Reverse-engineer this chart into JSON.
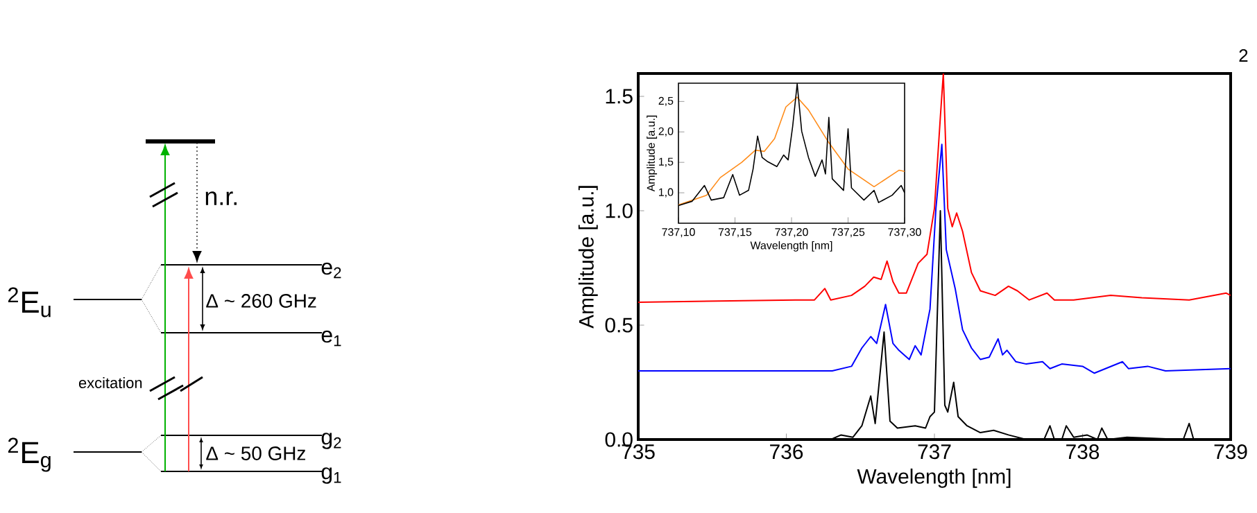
{
  "chart_data": [
    {
      "type": "line",
      "xlabel": "Wavelength [nm]",
      "ylabel": "Amplitude [a.u.]",
      "xlim": [
        735,
        739
      ],
      "ylim": [
        0,
        1.6
      ],
      "xticks": [
        735,
        736,
        737,
        738,
        739
      ],
      "yticks": [
        {
          "value": 0,
          "label": "0.0"
        },
        {
          "value": 0.5,
          "label": "0.5"
        },
        {
          "value": 1,
          "label": "1.0"
        },
        {
          "value": 1.5,
          "label": "1.5"
        }
      ],
      "series": [
        {
          "color": "#ff0000",
          "x": [
            735,
            736.06,
            736.19,
            736.26,
            736.3,
            736.44,
            736.53,
            736.59,
            736.64,
            736.68,
            736.72,
            736.76,
            736.81,
            736.89,
            736.95,
            737.0,
            737.04,
            737.06,
            737.09,
            737.12,
            737.15,
            737.19,
            737.22,
            737.25,
            737.31,
            737.41,
            737.5,
            737.56,
            737.64,
            737.76,
            737.81,
            737.94,
            738.19,
            738.4,
            738.72,
            738.97,
            739
          ],
          "values": [
            0.6,
            0.61,
            0.61,
            0.66,
            0.61,
            0.63,
            0.67,
            0.71,
            0.7,
            0.78,
            0.69,
            0.64,
            0.64,
            0.77,
            0.81,
            1.01,
            1.41,
            1.6,
            1.01,
            0.93,
            0.99,
            0.91,
            0.82,
            0.73,
            0.65,
            0.63,
            0.67,
            0.65,
            0.61,
            0.64,
            0.61,
            0.61,
            0.63,
            0.62,
            0.61,
            0.64,
            0.63
          ]
        },
        {
          "color": "#0000ff",
          "x": [
            735,
            736.31,
            736.44,
            736.51,
            736.57,
            736.61,
            736.67,
            736.72,
            736.76,
            736.83,
            736.87,
            736.91,
            736.97,
            737.01,
            737.05,
            737.08,
            737.14,
            737.19,
            737.25,
            737.31,
            737.37,
            737.43,
            737.46,
            737.49,
            737.55,
            737.62,
            737.73,
            737.78,
            737.86,
            738.0,
            738.08,
            738.27,
            738.31,
            738.44,
            738.56,
            739
          ],
          "values": [
            0.3,
            0.3,
            0.32,
            0.4,
            0.45,
            0.42,
            0.59,
            0.42,
            0.39,
            0.35,
            0.41,
            0.37,
            0.57,
            1.01,
            1.29,
            0.83,
            0.66,
            0.48,
            0.4,
            0.35,
            0.36,
            0.44,
            0.37,
            0.39,
            0.34,
            0.33,
            0.34,
            0.31,
            0.33,
            0.32,
            0.29,
            0.34,
            0.31,
            0.32,
            0.3,
            0.31
          ]
        },
        {
          "color": "#000000",
          "x": [
            735,
            736.3,
            736.37,
            736.45,
            736.51,
            736.57,
            736.6,
            736.66,
            736.7,
            736.75,
            736.87,
            736.94,
            736.97,
            737.0,
            737.04,
            737.07,
            737.09,
            737.13,
            737.16,
            737.22,
            737.31,
            737.4,
            737.5,
            737.62,
            737.74,
            737.78,
            737.81,
            737.86,
            737.89,
            737.94,
            738.03,
            738.1,
            738.13,
            738.17,
            738.3,
            738.68,
            738.72,
            738.75,
            739
          ],
          "values": [
            0,
            0,
            0.02,
            0.01,
            0.06,
            0.19,
            0.07,
            0.47,
            0.08,
            0.05,
            0.06,
            0.05,
            0.1,
            0.12,
            1.0,
            0.15,
            0.12,
            0.25,
            0.1,
            0.06,
            0.03,
            0.04,
            0.02,
            0.0,
            0.0,
            0.06,
            0.0,
            0.0,
            0.06,
            0.01,
            0.02,
            0.0,
            0.05,
            0.0,
            0.01,
            0.0,
            0.07,
            0.0,
            0.0
          ]
        }
      ]
    },
    {
      "type": "line",
      "xlabel": "Wavelength [nm]",
      "ylabel": "Amplitude [a.u.]",
      "xlim": [
        737.1,
        737.3
      ],
      "ylim": [
        0.5,
        2.8
      ],
      "xticks": [
        {
          "value": 737.1,
          "label": "737,10"
        },
        {
          "value": 737.15,
          "label": "737,15"
        },
        {
          "value": 737.2,
          "label": "737,20"
        },
        {
          "value": 737.25,
          "label": "737,25"
        },
        {
          "value": 737.3,
          "label": "737,30"
        }
      ],
      "yticks": [
        {
          "value": 1,
          "label": "1,0"
        },
        {
          "value": 1.5,
          "label": "1,5"
        },
        {
          "value": 2,
          "label": "2,0"
        },
        {
          "value": 2.5,
          "label": "2,5"
        }
      ],
      "series": [
        {
          "color": "#ff8c1a",
          "x": [
            737.1,
            737.125,
            737.137,
            737.156,
            737.168,
            737.176,
            737.185,
            737.195,
            737.205,
            737.215,
            737.232,
            737.25,
            737.273,
            737.295,
            737.3
          ],
          "values": [
            0.8,
            0.96,
            1.25,
            1.5,
            1.7,
            1.68,
            1.89,
            2.41,
            2.57,
            2.36,
            1.85,
            1.39,
            1.1,
            1.37,
            1.35
          ]
        },
        {
          "color": "#000000",
          "x": [
            737.1,
            737.112,
            737.123,
            737.129,
            737.14,
            737.148,
            737.154,
            737.162,
            737.166,
            737.17,
            737.174,
            737.179,
            737.187,
            737.193,
            737.197,
            737.201,
            737.205,
            737.209,
            737.215,
            737.221,
            737.227,
            737.23,
            737.233,
            737.236,
            737.246,
            737.25,
            737.253,
            737.264,
            737.273,
            737.277,
            737.289,
            737.297,
            737.3
          ],
          "values": [
            0.79,
            0.86,
            1.12,
            0.88,
            0.92,
            1.3,
            0.96,
            1.04,
            1.39,
            1.93,
            1.58,
            1.51,
            1.43,
            1.62,
            1.54,
            2.09,
            2.79,
            2.01,
            1.58,
            1.27,
            1.54,
            1.31,
            2.24,
            1.23,
            1.04,
            2.05,
            1.08,
            0.88,
            1.04,
            0.84,
            0.96,
            1.12,
            1.0
          ]
        }
      ]
    },
    {
      "type": "other",
      "annotations": [
        "$^{2}$E$_{u}$",
        "$^{2}$E$_{g}$",
        "e$_{2}$",
        "e$_{1}$",
        "g$_{2}$",
        "g$_{1}$",
        "n.r.",
        "Δ ~ 260  GHz",
        "Δ ~ 50 GHz",
        "excitation",
        "2"
      ]
    }
  ]
}
